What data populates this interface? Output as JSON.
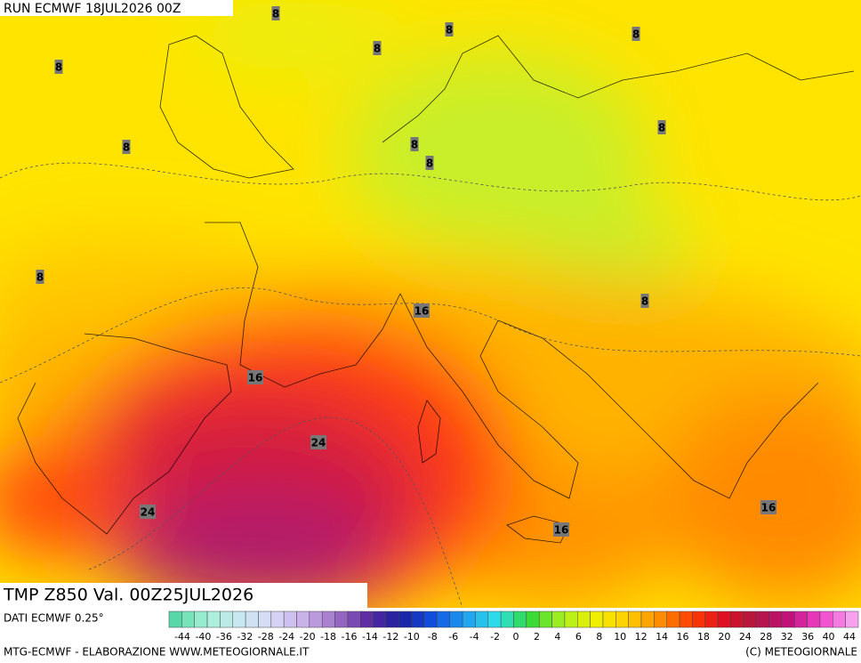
{
  "header": {
    "run": "RUN ECMWF 18JUL2026 00Z"
  },
  "map": {
    "title": "TMP Z850 Val. 00Z25JUL2026",
    "contour_labels": [
      8,
      8,
      8,
      8,
      8,
      8,
      8,
      8,
      8,
      8,
      8,
      16,
      16,
      24,
      24,
      16,
      16
    ]
  },
  "legend": {
    "source": "DATI ECMWF 0.25°",
    "ticks": [
      -44,
      -40,
      -36,
      -32,
      -28,
      -24,
      -20,
      -18,
      -16,
      -14,
      -12,
      -10,
      -8,
      -6,
      -4,
      -2,
      0,
      2,
      4,
      6,
      8,
      10,
      12,
      14,
      16,
      18,
      20,
      24,
      28,
      32,
      36,
      40,
      44
    ]
  },
  "footer": {
    "left": "MTG-ECMWF - ELABORAZIONE WWW.METEOGIORNALE.IT",
    "right": "(C) METEOGIORNALE"
  }
}
